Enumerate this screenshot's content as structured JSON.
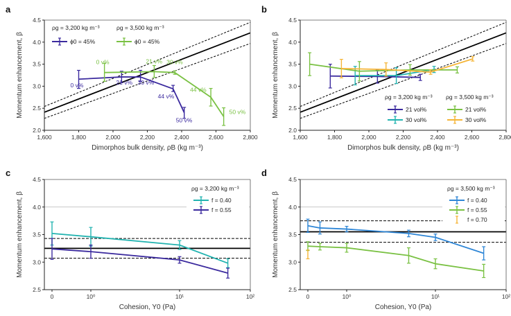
{
  "chart_data": [
    {
      "id": "a",
      "type": "line",
      "panel_label": "a",
      "xlabel": "Dimorphos bulk density, ρB (kg m⁻³)",
      "ylabel": "Momentum enhancement, β",
      "xscale": "linear",
      "xlim": [
        1600,
        2800
      ],
      "ylim": [
        2.0,
        4.5
      ],
      "xticks": [
        1600,
        1800,
        2000,
        2200,
        2400,
        2600,
        2800
      ],
      "xtick_labels": [
        "1,600",
        "1,800",
        "2,000",
        "2,200",
        "2,400",
        "2,600",
        "2,800"
      ],
      "yticks": [
        2.0,
        2.5,
        3.0,
        3.5,
        4.0,
        4.5
      ],
      "ytick_labels": [
        "2.0",
        "2.5",
        "3.0",
        "3.5",
        "4.0",
        "4.5"
      ],
      "reference_lines": [
        {
          "name": "beta-vs-density",
          "style": "solid",
          "x": [
            1600,
            2800
          ],
          "y": [
            2.41,
            4.21
          ]
        },
        {
          "name": "upper-bound",
          "style": "dashed",
          "x": [
            1600,
            2800
          ],
          "y": [
            2.54,
            4.45
          ]
        },
        {
          "name": "lower-bound",
          "style": "dashed",
          "x": [
            1600,
            2800
          ],
          "y": [
            2.27,
            3.97
          ]
        }
      ],
      "legend_groups": [
        {
          "header": "ρg = 3,200 kg m⁻³",
          "entries": [
            "ϕ0 = 45%"
          ]
        },
        {
          "header": "ρg = 3,500 kg m⁻³",
          "entries": [
            "ϕ0 = 45%"
          ]
        }
      ],
      "legend_position": "top-left",
      "series": [
        {
          "name": "ρg = 3,200 kg m⁻³, ϕ0 = 45%",
          "color": "#3b2a9e",
          "x": [
            1800,
            2050,
            2160,
            2350,
            2415
          ],
          "y": [
            3.16,
            3.21,
            3.21,
            2.94,
            2.4
          ],
          "err_low": [
            2.95,
            3.08,
            3.11,
            2.88,
            2.27
          ],
          "err_high": [
            3.36,
            3.34,
            3.36,
            3.02,
            2.52
          ],
          "point_labels": [
            "0 v%",
            "21 v%",
            "30 v%",
            "44 v%",
            "50 v%"
          ]
        },
        {
          "name": "ρg = 3,500 kg m⁻³, ϕ0 = 45%",
          "color": "#7ac143",
          "x": [
            1950,
            2240,
            2360,
            2570,
            2645
          ],
          "y": [
            3.31,
            3.33,
            3.31,
            2.75,
            2.31
          ],
          "err_low": [
            3.11,
            3.2,
            3.27,
            2.55,
            2.11
          ],
          "err_high": [
            3.52,
            3.47,
            3.35,
            2.95,
            2.51
          ],
          "point_labels": [
            "0 v%",
            "21 v%",
            "30 v%",
            "44 v%",
            "50 v%"
          ]
        }
      ]
    },
    {
      "id": "b",
      "type": "line",
      "panel_label": "b",
      "xlabel": "Dimorphos bulk density, ρB (kg m⁻³)",
      "ylabel": "Momentum enhancement, β",
      "xscale": "linear",
      "xlim": [
        1600,
        2800
      ],
      "ylim": [
        2.0,
        4.5
      ],
      "xticks": [
        1600,
        1800,
        2000,
        2200,
        2400,
        2600,
        2800
      ],
      "xtick_labels": [
        "1,600",
        "1,800",
        "2,000",
        "2,200",
        "2,400",
        "2,600",
        "2,800"
      ],
      "yticks": [
        2.0,
        2.5,
        3.0,
        3.5,
        4.0,
        4.5
      ],
      "ytick_labels": [
        "2.0",
        "2.5",
        "3.0",
        "3.5",
        "4.0",
        "4.5"
      ],
      "reference_lines": [
        {
          "name": "beta-vs-density",
          "style": "solid",
          "x": [
            1600,
            2800
          ],
          "y": [
            2.41,
            4.21
          ]
        },
        {
          "name": "upper-bound",
          "style": "dashed",
          "x": [
            1600,
            2800
          ],
          "y": [
            2.54,
            4.45
          ]
        },
        {
          "name": "lower-bound",
          "style": "dashed",
          "x": [
            1600,
            2800
          ],
          "y": [
            2.27,
            3.97
          ]
        }
      ],
      "legend_groups": [
        {
          "header": "ρg = 3,200 kg m⁻³",
          "entries": [
            "21 vol%",
            "30 vol%"
          ]
        },
        {
          "header": "ρg = 3,500 kg m⁻³",
          "entries": [
            "21 vol%",
            "30 vol%"
          ]
        }
      ],
      "legend_position": "bottom-right",
      "series": [
        {
          "name": "ρg = 3,200 kg m⁻³, 21 vol%",
          "color": "#3b2a9e",
          "x": [
            1775,
            2050,
            2300
          ],
          "y": [
            3.23,
            3.22,
            3.2
          ],
          "err_low": [
            2.96,
            3.07,
            3.13
          ],
          "err_high": [
            3.5,
            3.37,
            3.27
          ]
        },
        {
          "name": "ρg = 3,200 kg m⁻³, 30 vol%",
          "color": "#22b3b0",
          "x": [
            1920,
            2160,
            2380
          ],
          "y": [
            3.24,
            3.24,
            3.38
          ],
          "err_low": [
            3.03,
            3.06,
            3.31
          ],
          "err_high": [
            3.45,
            3.42,
            3.45
          ]
        },
        {
          "name": "ρg = 3,500 kg m⁻³, 21 vol%",
          "color": "#7ac143",
          "x": [
            1655,
            1945,
            2240,
            2515
          ],
          "y": [
            3.5,
            3.34,
            3.37,
            3.37
          ],
          "err_low": [
            3.24,
            3.12,
            3.25,
            3.3
          ],
          "err_high": [
            3.76,
            3.56,
            3.49,
            3.44
          ]
        },
        {
          "name": "ρg = 3,500 kg m⁻³, 30 vol%",
          "color": "#f5b537",
          "x": [
            1840,
            2100,
            2360,
            2605
          ],
          "y": [
            3.4,
            3.38,
            3.32,
            3.62
          ],
          "err_low": [
            3.19,
            3.23,
            3.27,
            3.57
          ],
          "err_high": [
            3.61,
            3.53,
            3.37,
            3.67
          ]
        }
      ]
    },
    {
      "id": "c",
      "type": "line",
      "panel_label": "c",
      "xlabel": "Cohesion, Y0 (Pa)",
      "ylabel": "Momentum enhancement, β",
      "xscale": "symlog",
      "xlim": [
        0,
        100
      ],
      "ylim": [
        2.5,
        4.5
      ],
      "xticks": [
        0,
        1,
        10,
        100
      ],
      "xtick_labels": [
        "0",
        "10⁰",
        "10¹",
        "10²"
      ],
      "yticks": [
        2.5,
        3.0,
        3.5,
        4.0,
        4.5
      ],
      "ytick_labels": [
        "2.5",
        "3.0",
        "3.5",
        "4.0",
        "4.5"
      ],
      "reference_lines": [
        {
          "name": "gray-level",
          "style": "thin-gray",
          "y": 4.0
        },
        {
          "name": "beta-observed",
          "style": "solid",
          "y": 3.25
        },
        {
          "name": "upper-bound",
          "style": "dashed",
          "y": 3.43
        },
        {
          "name": "lower-bound",
          "style": "dashed",
          "y": 3.07
        }
      ],
      "legend_header": "ρg = 3,200 kg m⁻³",
      "legend_position": "top-right",
      "series": [
        {
          "name": "f = 0.40",
          "color": "#22b3b0",
          "x": [
            0,
            1,
            10,
            35
          ],
          "y": [
            3.52,
            3.46,
            3.31,
            2.98
          ],
          "err_low": [
            3.31,
            3.29,
            3.23,
            2.9
          ],
          "err_high": [
            3.73,
            3.63,
            3.39,
            3.06
          ]
        },
        {
          "name": "f = 0.55",
          "color": "#3b2a9e",
          "x": [
            0,
            1,
            10,
            35
          ],
          "y": [
            3.24,
            3.19,
            3.04,
            2.8
          ],
          "err_low": [
            3.05,
            3.07,
            2.98,
            2.71
          ],
          "err_high": [
            3.43,
            3.31,
            3.1,
            2.89
          ]
        }
      ]
    },
    {
      "id": "d",
      "type": "line",
      "panel_label": "d",
      "xlabel": "Cohesion, Y0 (Pa)",
      "ylabel": "Momentum enhancement, β",
      "xscale": "symlog",
      "xlim": [
        0,
        100
      ],
      "ylim": [
        2.5,
        4.5
      ],
      "xticks": [
        0,
        1,
        10,
        100
      ],
      "xtick_labels": [
        "0",
        "10⁰",
        "10¹",
        "10²"
      ],
      "yticks": [
        2.5,
        3.0,
        3.5,
        4.0,
        4.5
      ],
      "ytick_labels": [
        "2.5",
        "3.0",
        "3.5",
        "4.0",
        "4.5"
      ],
      "reference_lines": [
        {
          "name": "gray-level",
          "style": "thin-gray",
          "y": 4.0
        },
        {
          "name": "beta-observed",
          "style": "solid",
          "y": 3.55
        },
        {
          "name": "upper-bound",
          "style": "dashed",
          "y": 3.75
        },
        {
          "name": "lower-bound",
          "style": "dashed",
          "y": 3.36
        }
      ],
      "legend_header": "ρg = 3,500 kg m⁻³",
      "legend_position": "top-right",
      "series": [
        {
          "name": "f = 0.40",
          "color": "#2e86d6",
          "x": [
            0,
            0.5,
            1,
            5,
            10,
            35
          ],
          "y": [
            3.66,
            3.62,
            3.6,
            3.52,
            3.45,
            3.16
          ],
          "err_low": [
            3.54,
            3.51,
            3.55,
            3.46,
            3.39,
            3.04
          ],
          "err_high": [
            3.78,
            3.73,
            3.65,
            3.58,
            3.51,
            3.28
          ]
        },
        {
          "name": "f = 0.55",
          "color": "#7ac143",
          "x": [
            0,
            0.5,
            1,
            5,
            10,
            35
          ],
          "y": [
            3.29,
            3.28,
            3.26,
            3.12,
            2.97,
            2.84
          ],
          "err_low": [
            3.21,
            3.22,
            3.18,
            2.98,
            2.88,
            2.72
          ],
          "err_high": [
            3.37,
            3.34,
            3.34,
            3.26,
            3.06,
            2.96
          ]
        },
        {
          "name": "f = 0.70",
          "color": "#f5b537",
          "x": [
            0
          ],
          "y": [
            3.14
          ],
          "err_low": [
            3.06
          ],
          "err_high": [
            3.22
          ]
        }
      ]
    }
  ]
}
